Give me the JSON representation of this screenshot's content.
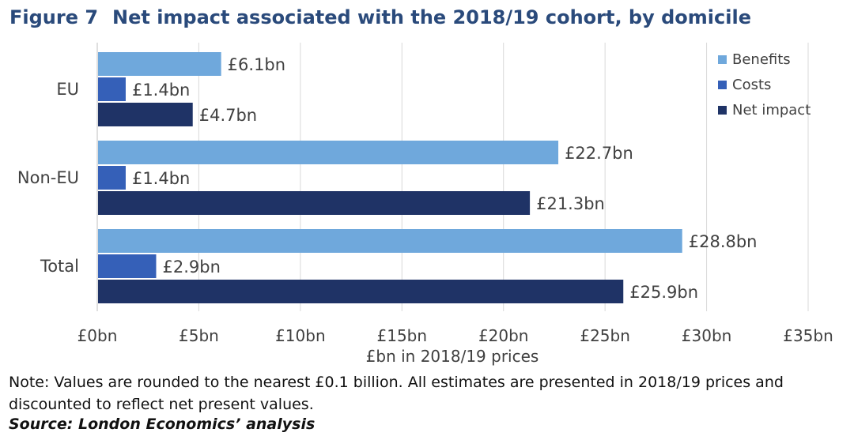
{
  "figure": {
    "number": "Figure 7",
    "title": "Net impact associated with the 2018/19 cohort, by domicile"
  },
  "chart_data": {
    "type": "bar",
    "orientation": "horizontal",
    "categories": [
      "EU",
      "Non-EU",
      "Total"
    ],
    "series": [
      {
        "name": "Benefits",
        "values": [
          6.1,
          22.7,
          28.8
        ],
        "labels": [
          "£6.1bn",
          "£22.7bn",
          "£28.8bn"
        ],
        "color": "#6fa8dc"
      },
      {
        "name": "Costs",
        "values": [
          1.4,
          1.4,
          2.9
        ],
        "labels": [
          "£1.4bn",
          "£1.4bn",
          "£2.9bn"
        ],
        "color": "#3560b8"
      },
      {
        "name": "Net impact",
        "values": [
          4.7,
          21.3,
          25.9
        ],
        "labels": [
          "£4.7bn",
          "£21.3bn",
          "£25.9bn"
        ],
        "color": "#1f3366"
      }
    ],
    "xlabel": "£bn in 2018/19 prices",
    "xlim": [
      0,
      35
    ],
    "xticks": [
      0,
      5,
      10,
      15,
      20,
      25,
      30,
      35
    ],
    "xtick_labels": [
      "£0bn",
      "£5bn",
      "£10bn",
      "£15bn",
      "£20bn",
      "£25bn",
      "£30bn",
      "£35bn"
    ],
    "grid": "vertical",
    "legend_position": "top-right"
  },
  "note": "Note: Values are rounded to the nearest £0.1 billion. All estimates are presented in 2018/19 prices and discounted to reflect net present values.",
  "source": "Source: London Economics’ analysis"
}
